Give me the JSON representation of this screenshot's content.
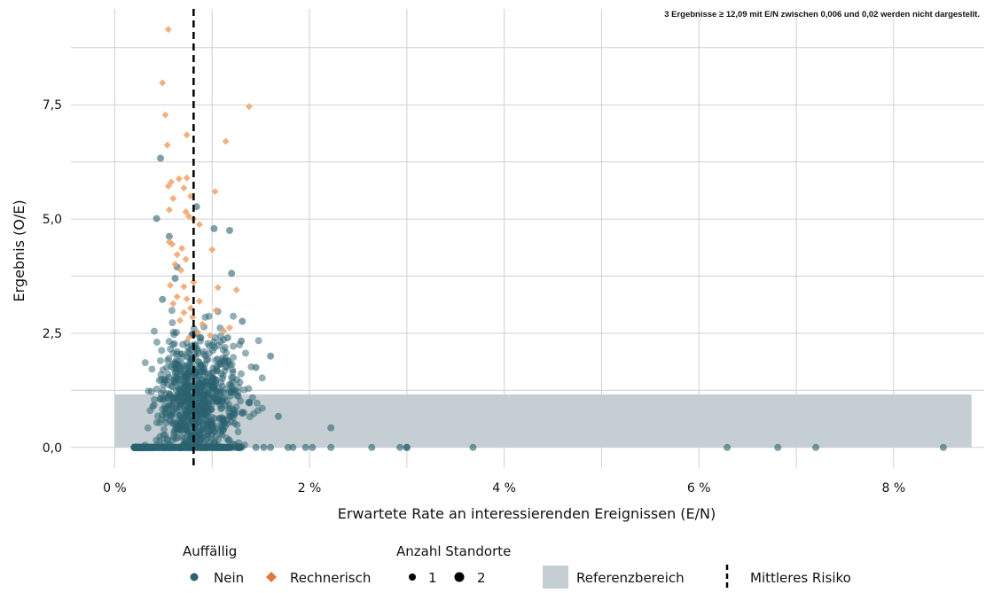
{
  "chart_data": {
    "type": "scatter",
    "note": "3 Ergebnisse ≥ 12,09 mit E/N zwischen 0,006 und 0,02 werden nicht dargestellt.",
    "xlabel": "Erwartete Rate an interessierenden Ereignissen (E/N)",
    "ylabel": "Ergebnis (O/E)",
    "xlim": [
      -0.0045,
      0.0893
    ],
    "ylim": [
      -0.45,
      9.6
    ],
    "x_ticks": [
      0,
      0.02,
      0.04,
      0.06,
      0.08
    ],
    "x_tick_labels": [
      "0 %",
      "2 %",
      "4 %",
      "6 %",
      "8 %"
    ],
    "y_ticks": [
      0,
      2.5,
      5.0,
      7.5
    ],
    "y_tick_labels": [
      "0,0",
      "2,5",
      "5,0",
      "7,5"
    ],
    "grid": true,
    "reference_range": {
      "x": [
        0,
        0.088
      ],
      "y": [
        0,
        1.16
      ]
    },
    "mean_risk_x": 0.0081,
    "colors": {
      "nein": "#2a6170",
      "rechnerisch": "#f0a26a",
      "reference": "#c5cfd3",
      "mean_line": "#000000",
      "grid": "#d0d0d0"
    },
    "series": [
      {
        "name": "Nein",
        "marker": "circle",
        "points_note": "cluster of ~1000 sites with E/N between 0.002 and 0.017 and O/E between 0 and 3.1 is drawn by script; explicit outliers listed",
        "points": [
          [
            0.0047,
            6.33
          ],
          [
            0.0043,
            5.01
          ],
          [
            0.0084,
            5.27
          ],
          [
            0.0102,
            4.79
          ],
          [
            0.0118,
            4.75
          ],
          [
            0.0056,
            4.62
          ],
          [
            0.012,
            3.81
          ],
          [
            0.0064,
            3.95
          ],
          [
            0.0062,
            3.7
          ],
          [
            0.0049,
            3.24
          ],
          [
            0.0131,
            2.76
          ],
          [
            0.013,
            2.33
          ],
          [
            0.0116,
            2.4
          ],
          [
            0.016,
            2.0
          ],
          [
            0.0145,
            1.75
          ],
          [
            0.0168,
            0.68
          ],
          [
            0.0222,
            0.43
          ],
          [
            0.0196,
            0.0
          ],
          [
            0.0203,
            0.0
          ],
          [
            0.0222,
            0.0
          ],
          [
            0.0264,
            0.0
          ],
          [
            0.0293,
            0.0
          ],
          [
            0.03,
            0.0
          ],
          [
            0.03,
            0.0
          ],
          [
            0.0368,
            0.0
          ],
          [
            0.0629,
            0.0
          ],
          [
            0.0681,
            0.0
          ],
          [
            0.072,
            0.0
          ],
          [
            0.0851,
            0.0
          ],
          [
            0.0178,
            0.0
          ],
          [
            0.0183,
            0.0
          ],
          [
            0.0153,
            0.0
          ],
          [
            0.016,
            0.0
          ],
          [
            0.0145,
            0.0
          ]
        ]
      },
      {
        "name": "Rechnerisch",
        "marker": "diamond",
        "points": [
          [
            0.0055,
            9.15
          ],
          [
            0.0049,
            7.98
          ],
          [
            0.0052,
            7.28
          ],
          [
            0.0138,
            7.46
          ],
          [
            0.0074,
            6.84
          ],
          [
            0.0114,
            6.7
          ],
          [
            0.0054,
            6.62
          ],
          [
            0.0058,
            5.81
          ],
          [
            0.0066,
            5.88
          ],
          [
            0.0074,
            5.9
          ],
          [
            0.0055,
            5.72
          ],
          [
            0.0071,
            5.68
          ],
          [
            0.0103,
            5.6
          ],
          [
            0.006,
            5.45
          ],
          [
            0.0078,
            5.5
          ],
          [
            0.0056,
            5.2
          ],
          [
            0.0073,
            5.16
          ],
          [
            0.0076,
            5.06
          ],
          [
            0.0081,
            5.0
          ],
          [
            0.0087,
            4.88
          ],
          [
            0.0056,
            4.5
          ],
          [
            0.0059,
            4.45
          ],
          [
            0.0069,
            4.36
          ],
          [
            0.01,
            4.33
          ],
          [
            0.0064,
            4.22
          ],
          [
            0.0073,
            4.12
          ],
          [
            0.0062,
            4.01
          ],
          [
            0.0068,
            3.88
          ],
          [
            0.0081,
            3.62
          ],
          [
            0.0057,
            3.55
          ],
          [
            0.0071,
            3.52
          ],
          [
            0.0106,
            3.5
          ],
          [
            0.0125,
            3.45
          ],
          [
            0.0064,
            3.3
          ],
          [
            0.0074,
            3.25
          ],
          [
            0.0087,
            3.2
          ],
          [
            0.006,
            3.15
          ],
          [
            0.0078,
            3.05
          ],
          [
            0.0104,
            3.0
          ],
          [
            0.0071,
            2.95
          ],
          [
            0.008,
            2.85
          ],
          [
            0.0067,
            2.78
          ],
          [
            0.009,
            2.7
          ],
          [
            0.0118,
            2.62
          ],
          [
            0.0112,
            2.55
          ],
          [
            0.0085,
            2.52
          ],
          [
            0.0098,
            2.45
          ],
          [
            0.0076,
            2.4
          ]
        ]
      }
    ],
    "legend": {
      "auffaellig_title": "Auffällig",
      "nein_label": "Nein",
      "rechnerisch_label": "Rechnerisch",
      "anzahl_title": "Anzahl Standorte",
      "size_1_label": "1",
      "size_2_label": "2",
      "referenz_label": "Referenzbereich",
      "mittleres_label": "Mittleres Risiko"
    }
  }
}
